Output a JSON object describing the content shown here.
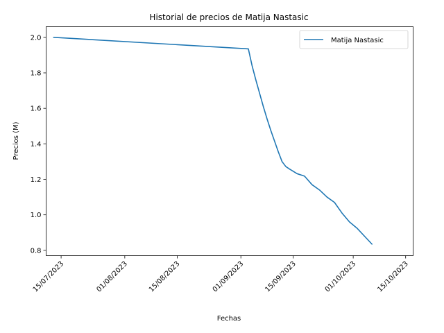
{
  "chart_data": {
    "type": "line",
    "title": "Historial de precios de Matija Nastasic",
    "xlabel": "Fechas",
    "ylabel": "Precios (M)",
    "x_axis_type": "date",
    "xlim": [
      "2023-07-11",
      "2023-10-17"
    ],
    "ylim": [
      0.77,
      2.06
    ],
    "x_ticks": [
      {
        "date": "2023-07-15",
        "label": "15/07/2023"
      },
      {
        "date": "2023-08-01",
        "label": "01/08/2023"
      },
      {
        "date": "2023-08-15",
        "label": "15/08/2023"
      },
      {
        "date": "2023-09-01",
        "label": "01/09/2023"
      },
      {
        "date": "2023-09-15",
        "label": "15/09/2023"
      },
      {
        "date": "2023-10-01",
        "label": "01/10/2023"
      },
      {
        "date": "2023-10-15",
        "label": "15/10/2023"
      }
    ],
    "y_ticks": [
      {
        "value": 0.8,
        "label": "0.8"
      },
      {
        "value": 1.0,
        "label": "1.0"
      },
      {
        "value": 1.2,
        "label": "1.2"
      },
      {
        "value": 1.4,
        "label": "1.4"
      },
      {
        "value": 1.6,
        "label": "1.6"
      },
      {
        "value": 1.8,
        "label": "1.8"
      },
      {
        "value": 2.0,
        "label": "2.0"
      }
    ],
    "grid": false,
    "legend": "top-right",
    "series": [
      {
        "name": "Matija Nastasic",
        "color": "#1f77b4",
        "points": [
          {
            "x": "2023-07-13",
            "y": 2.0
          },
          {
            "x": "2023-09-03",
            "y": 1.935
          },
          {
            "x": "2023-09-04",
            "y": 1.84
          },
          {
            "x": "2023-09-05",
            "y": 1.76
          },
          {
            "x": "2023-09-06",
            "y": 1.685
          },
          {
            "x": "2023-09-07",
            "y": 1.61
          },
          {
            "x": "2023-09-08",
            "y": 1.54
          },
          {
            "x": "2023-09-09",
            "y": 1.475
          },
          {
            "x": "2023-09-10",
            "y": 1.415
          },
          {
            "x": "2023-09-11",
            "y": 1.355
          },
          {
            "x": "2023-09-12",
            "y": 1.3
          },
          {
            "x": "2023-09-13",
            "y": 1.272
          },
          {
            "x": "2023-09-14",
            "y": 1.258
          },
          {
            "x": "2023-09-16",
            "y": 1.232
          },
          {
            "x": "2023-09-18",
            "y": 1.218
          },
          {
            "x": "2023-09-20",
            "y": 1.17
          },
          {
            "x": "2023-09-22",
            "y": 1.14
          },
          {
            "x": "2023-09-24",
            "y": 1.1
          },
          {
            "x": "2023-09-26",
            "y": 1.07
          },
          {
            "x": "2023-09-28",
            "y": 1.01
          },
          {
            "x": "2023-09-30",
            "y": 0.96
          },
          {
            "x": "2023-10-02",
            "y": 0.925
          },
          {
            "x": "2023-10-04",
            "y": 0.88
          },
          {
            "x": "2023-10-06",
            "y": 0.835
          }
        ]
      }
    ]
  }
}
